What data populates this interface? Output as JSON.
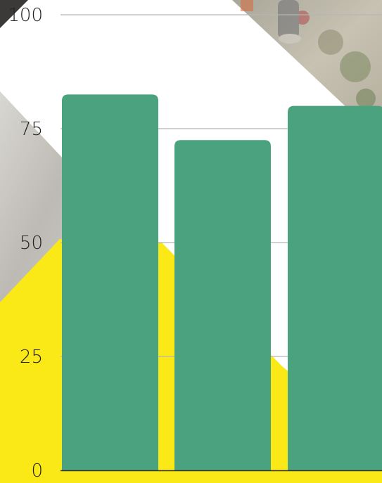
{
  "chart_data": {
    "type": "bar",
    "title": "",
    "xlabel": "",
    "ylabel": "",
    "ylim": [
      0,
      100
    ],
    "yticks": [
      0,
      25,
      50,
      75,
      100
    ],
    "grid": true,
    "legend": "none",
    "categories": [
      "",
      "",
      ""
    ],
    "series": [
      {
        "values": [
          82.5,
          72.5,
          80
        ]
      }
    ]
  },
  "colors": {
    "bar": "#4ba27f",
    "gridline": "#b5b5b5",
    "axis": "#333333",
    "tick_label": "#222222",
    "background_yellow": "#fbe917",
    "background_photo": "#c7c4bd",
    "background_white": "#ffffff"
  }
}
